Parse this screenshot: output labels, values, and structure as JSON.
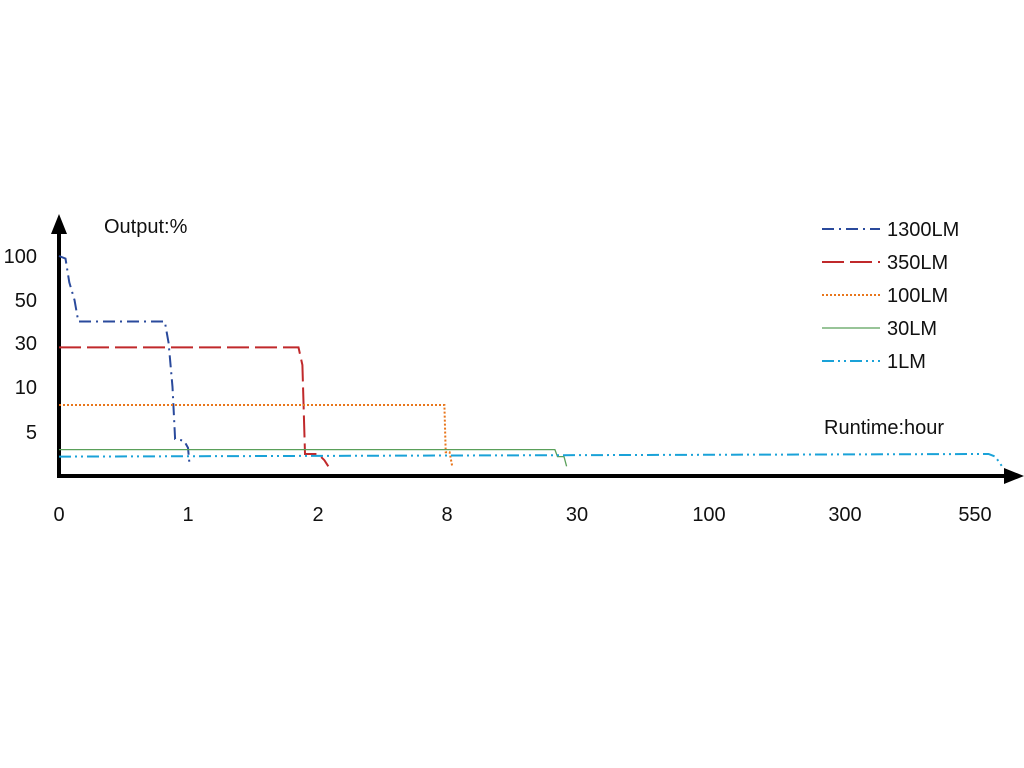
{
  "chart_data": {
    "type": "line",
    "ylabel": "Output:%",
    "xlabel": "Runtime:hour",
    "x_tick_labels": [
      "0",
      "1",
      "2",
      "8",
      "30",
      "100",
      "300",
      "550"
    ],
    "y_tick_labels": [
      "100",
      "50",
      "30",
      "10",
      "5"
    ],
    "x_scale": "categorical-ticks",
    "y_scale": "categorical-ticks",
    "grid": false,
    "legend_position": "top-right",
    "series": [
      {
        "name": "1300LM",
        "color": "#2a4a9c",
        "dash": "dashdot",
        "points": [
          [
            0,
            100
          ],
          [
            0.05,
            97
          ],
          [
            0.08,
            70
          ],
          [
            0.12,
            50
          ],
          [
            0.15,
            40
          ],
          [
            0.82,
            40
          ],
          [
            0.85,
            30
          ],
          [
            0.88,
            10
          ],
          [
            0.9,
            4.2
          ],
          [
            0.97,
            4
          ],
          [
            1.0,
            3.2
          ],
          [
            1.01,
            1.6
          ]
        ]
      },
      {
        "name": "350LM",
        "color": "#c0292b",
        "dash": "longdash",
        "points": [
          [
            0,
            28
          ],
          [
            1.85,
            28
          ],
          [
            1.88,
            20
          ],
          [
            1.9,
            2.5
          ],
          [
            2.0,
            2.5
          ],
          [
            2.05,
            1.8
          ],
          [
            2.08,
            1.1
          ]
        ]
      },
      {
        "name": "100LM",
        "color": "#e8761c",
        "dash": "dotted",
        "points": [
          [
            0,
            8
          ],
          [
            2.98,
            8
          ],
          [
            2.99,
            2.7
          ],
          [
            3.02,
            2.7
          ],
          [
            3.04,
            1.1
          ]
        ]
      },
      {
        "name": "30LM",
        "color": "#5aa05a",
        "dash": "solid",
        "points": [
          [
            0,
            3
          ],
          [
            3.83,
            3
          ],
          [
            3.85,
            2.2
          ],
          [
            3.9,
            2.2
          ],
          [
            3.92,
            1.1
          ]
        ]
      },
      {
        "name": "1LM",
        "color": "#1aa2d8",
        "dash": "dashdotdot",
        "points": [
          [
            0,
            2.2
          ],
          [
            7.1,
            2.5
          ],
          [
            7.15,
            2.2
          ],
          [
            7.2,
            1.1
          ]
        ]
      }
    ]
  }
}
